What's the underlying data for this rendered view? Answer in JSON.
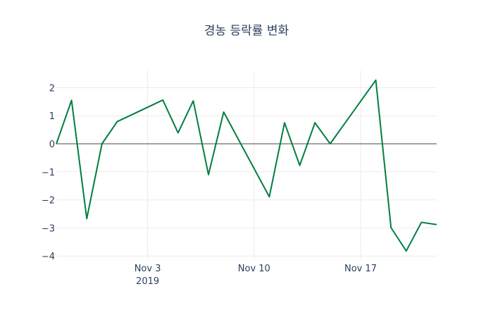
{
  "chart_data": {
    "type": "line",
    "title": "경농 등락률 변화",
    "xlabel": "",
    "ylabel": "",
    "x": [
      "2019-10-28",
      "2019-10-29",
      "2019-10-30",
      "2019-10-31",
      "2019-11-01",
      "2019-11-04",
      "2019-11-05",
      "2019-11-06",
      "2019-11-07",
      "2019-11-08",
      "2019-11-11",
      "2019-11-12",
      "2019-11-13",
      "2019-11-14",
      "2019-11-15",
      "2019-11-18",
      "2019-11-19",
      "2019-11-20",
      "2019-11-21",
      "2019-11-22"
    ],
    "series": [
      {
        "name": "등락률",
        "color": "#007f3f",
        "values": [
          0,
          1.55,
          -2.67,
          0,
          0.79,
          1.56,
          0.39,
          1.53,
          -1.1,
          1.13,
          -1.89,
          0.75,
          -0.77,
          0.75,
          0,
          2.27,
          -2.99,
          -3.82,
          -2.8,
          -2.88
        ]
      }
    ],
    "ylim": [
      -4.15,
      2.6
    ],
    "yticks": [
      2,
      1,
      0,
      -1,
      -2,
      -3,
      -4
    ],
    "ytick_labels": [
      "2",
      "1",
      "0",
      "−1",
      "−2",
      "−3",
      "−4"
    ],
    "xticks": [
      {
        "date": "2019-11-03",
        "label": "Nov 3",
        "sublabel": "2019"
      },
      {
        "date": "2019-11-10",
        "label": "Nov 10",
        "sublabel": ""
      },
      {
        "date": "2019-11-17",
        "label": "Nov 17",
        "sublabel": ""
      }
    ],
    "grid": true,
    "legend": "none"
  }
}
